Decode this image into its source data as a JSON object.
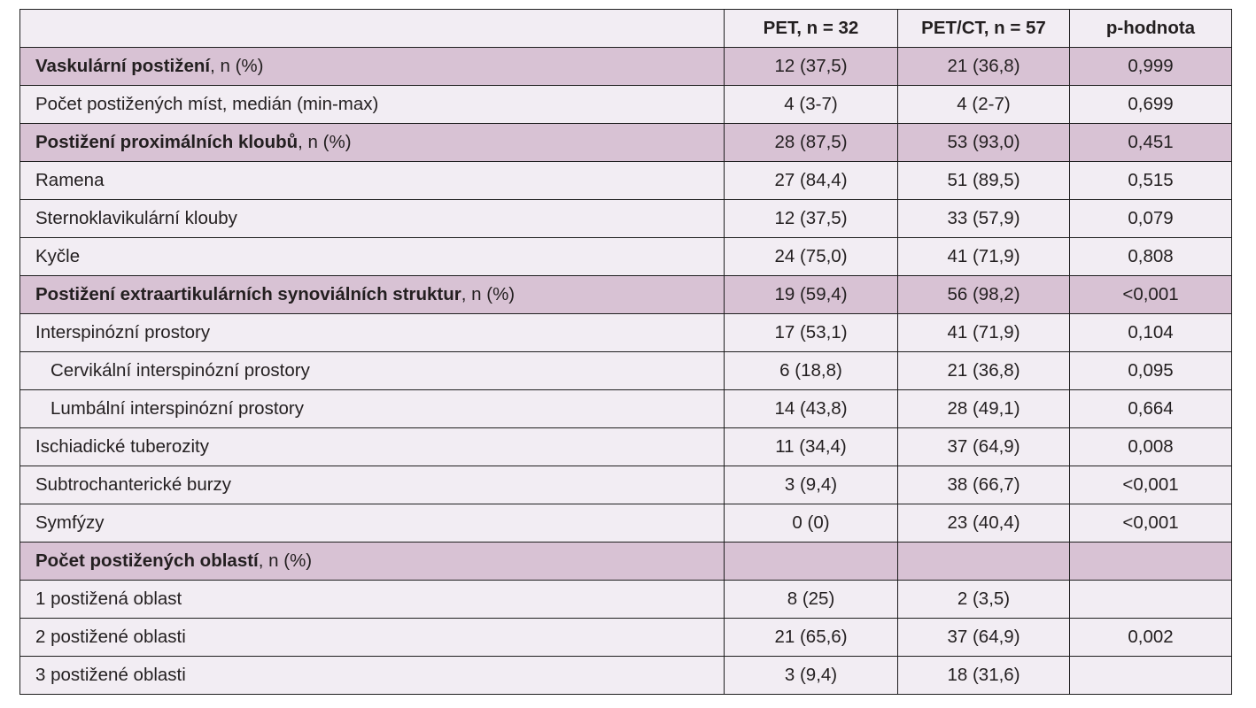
{
  "table": {
    "headers": [
      "",
      "PET,  n = 32",
      "PET/CT, n = 57",
      "p-hodnota"
    ],
    "rows": [
      {
        "bold": "Vaskulární postižení",
        "rest": ", n (%)",
        "pet": "12 (37,5)",
        "petct": "21 (36,8)",
        "p": "0,999",
        "section": true
      },
      {
        "bold": "",
        "rest": "Počet postižených míst, medián (min-max)",
        "pet": "4 (3-7)",
        "petct": "4 (2-7)",
        "p": "0,699",
        "section": false
      },
      {
        "bold": "Postižení proximálních kloubů",
        "rest": ", n (%)",
        "pet": "28 (87,5)",
        "petct": "53 (93,0)",
        "p": "0,451",
        "section": true
      },
      {
        "bold": "",
        "rest": "Ramena",
        "pet": "27 (84,4)",
        "petct": "51 (89,5)",
        "p": "0,515",
        "section": false
      },
      {
        "bold": "",
        "rest": "Sternoklavikulární klouby",
        "pet": "12 (37,5)",
        "petct": "33 (57,9)",
        "p": "0,079",
        "section": false
      },
      {
        "bold": "",
        "rest": "Kyčle",
        "pet": "24 (75,0)",
        "petct": "41 (71,9)",
        "p": "0,808",
        "section": false
      },
      {
        "bold": "Postižení extraartikulárních synoviálních struktur",
        "rest": ", n (%)",
        "pet": "19 (59,4)",
        "petct": "56 (98,2)",
        "p": "<0,001",
        "section": true
      },
      {
        "bold": "",
        "rest": "Interspinózní prostory",
        "pet": "17 (53,1)",
        "petct": "41 (71,9)",
        "p": "0,104",
        "section": false
      },
      {
        "bold": "",
        "rest": "Cervikální interspinózní prostory",
        "pet": "6 (18,8)",
        "petct": "21 (36,8)",
        "p": "0,095",
        "section": false,
        "indent": true
      },
      {
        "bold": "",
        "rest": "Lumbální interspinózní prostory",
        "pet": "14 (43,8)",
        "petct": "28 (49,1)",
        "p": "0,664",
        "section": false,
        "indent": true
      },
      {
        "bold": "",
        "rest": "Ischiadické tuberozity",
        "pet": "11 (34,4)",
        "petct": "37 (64,9)",
        "p": "0,008",
        "section": false
      },
      {
        "bold": "",
        "rest": "Subtrochanterické burzy",
        "pet": "3 (9,4)",
        "petct": "38 (66,7)",
        "p": "<0,001",
        "section": false
      },
      {
        "bold": "",
        "rest": "Symfýzy",
        "pet": "0 (0)",
        "petct": "23 (40,4)",
        "p": "<0,001",
        "section": false
      },
      {
        "bold": "Počet postižených oblastí",
        "rest": ", n (%)",
        "pet": "",
        "petct": "",
        "p": "",
        "section": true
      },
      {
        "bold": "",
        "rest": "1 postižená oblast",
        "pet": "8 (25)",
        "petct": "2 (3,5)",
        "p": "",
        "section": false
      },
      {
        "bold": "",
        "rest": "2 postižené oblasti",
        "pet": "21 (65,6)",
        "petct": "37 (64,9)",
        "p": "0,002",
        "section": false
      },
      {
        "bold": "",
        "rest": "3 postižené oblasti",
        "pet": "3 (9,4)",
        "petct": "18 (31,6)",
        "p": "",
        "section": false
      }
    ]
  },
  "colors": {
    "section_bg": "#d8c2d4",
    "row_bg": "#f2edf3",
    "border": "#1f1f1f",
    "text": "#231f20"
  }
}
